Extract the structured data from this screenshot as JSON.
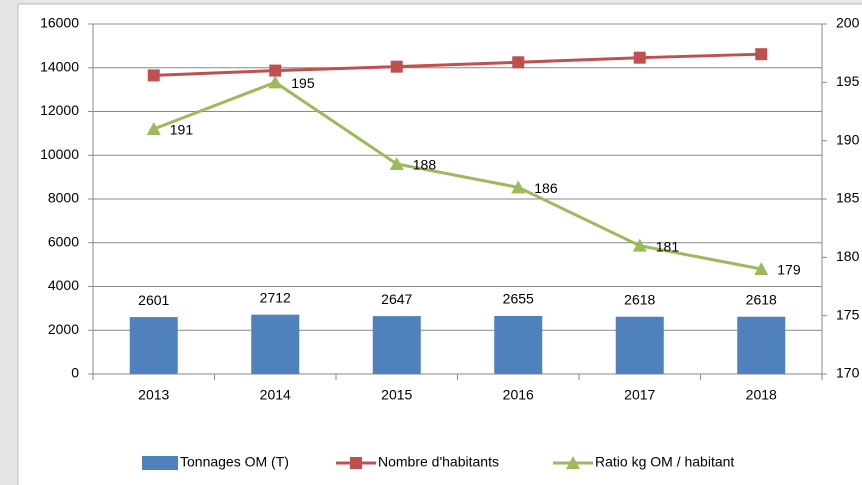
{
  "chart_data": {
    "type": "bar_line",
    "categories": [
      "2013",
      "2014",
      "2015",
      "2016",
      "2017",
      "2018"
    ],
    "series": [
      {
        "name": "Tonnages OM (T)",
        "type": "bar",
        "color": "#4f81bd",
        "values": [
          2601,
          2712,
          2647,
          2655,
          2618,
          2618
        ]
      },
      {
        "name": "Nombre d'habitants",
        "type": "line",
        "marker": "square",
        "color": "#c0504d",
        "values": [
          13650,
          13870,
          14050,
          14250,
          14460,
          14620
        ]
      },
      {
        "name": "Ratio kg OM / habitant",
        "type": "line",
        "marker": "triangle",
        "color": "#9bbb59",
        "axis": "y2",
        "values": [
          191,
          195,
          188,
          186,
          181,
          179
        ]
      }
    ],
    "ylim": [
      0,
      16000
    ],
    "yticks": [
      0,
      2000,
      4000,
      6000,
      8000,
      10000,
      12000,
      14000,
      16000
    ],
    "y2lim": [
      170,
      200
    ],
    "y2ticks": [
      170,
      175,
      180,
      185,
      190,
      195,
      200
    ],
    "grid": true,
    "legend": "bottom"
  }
}
